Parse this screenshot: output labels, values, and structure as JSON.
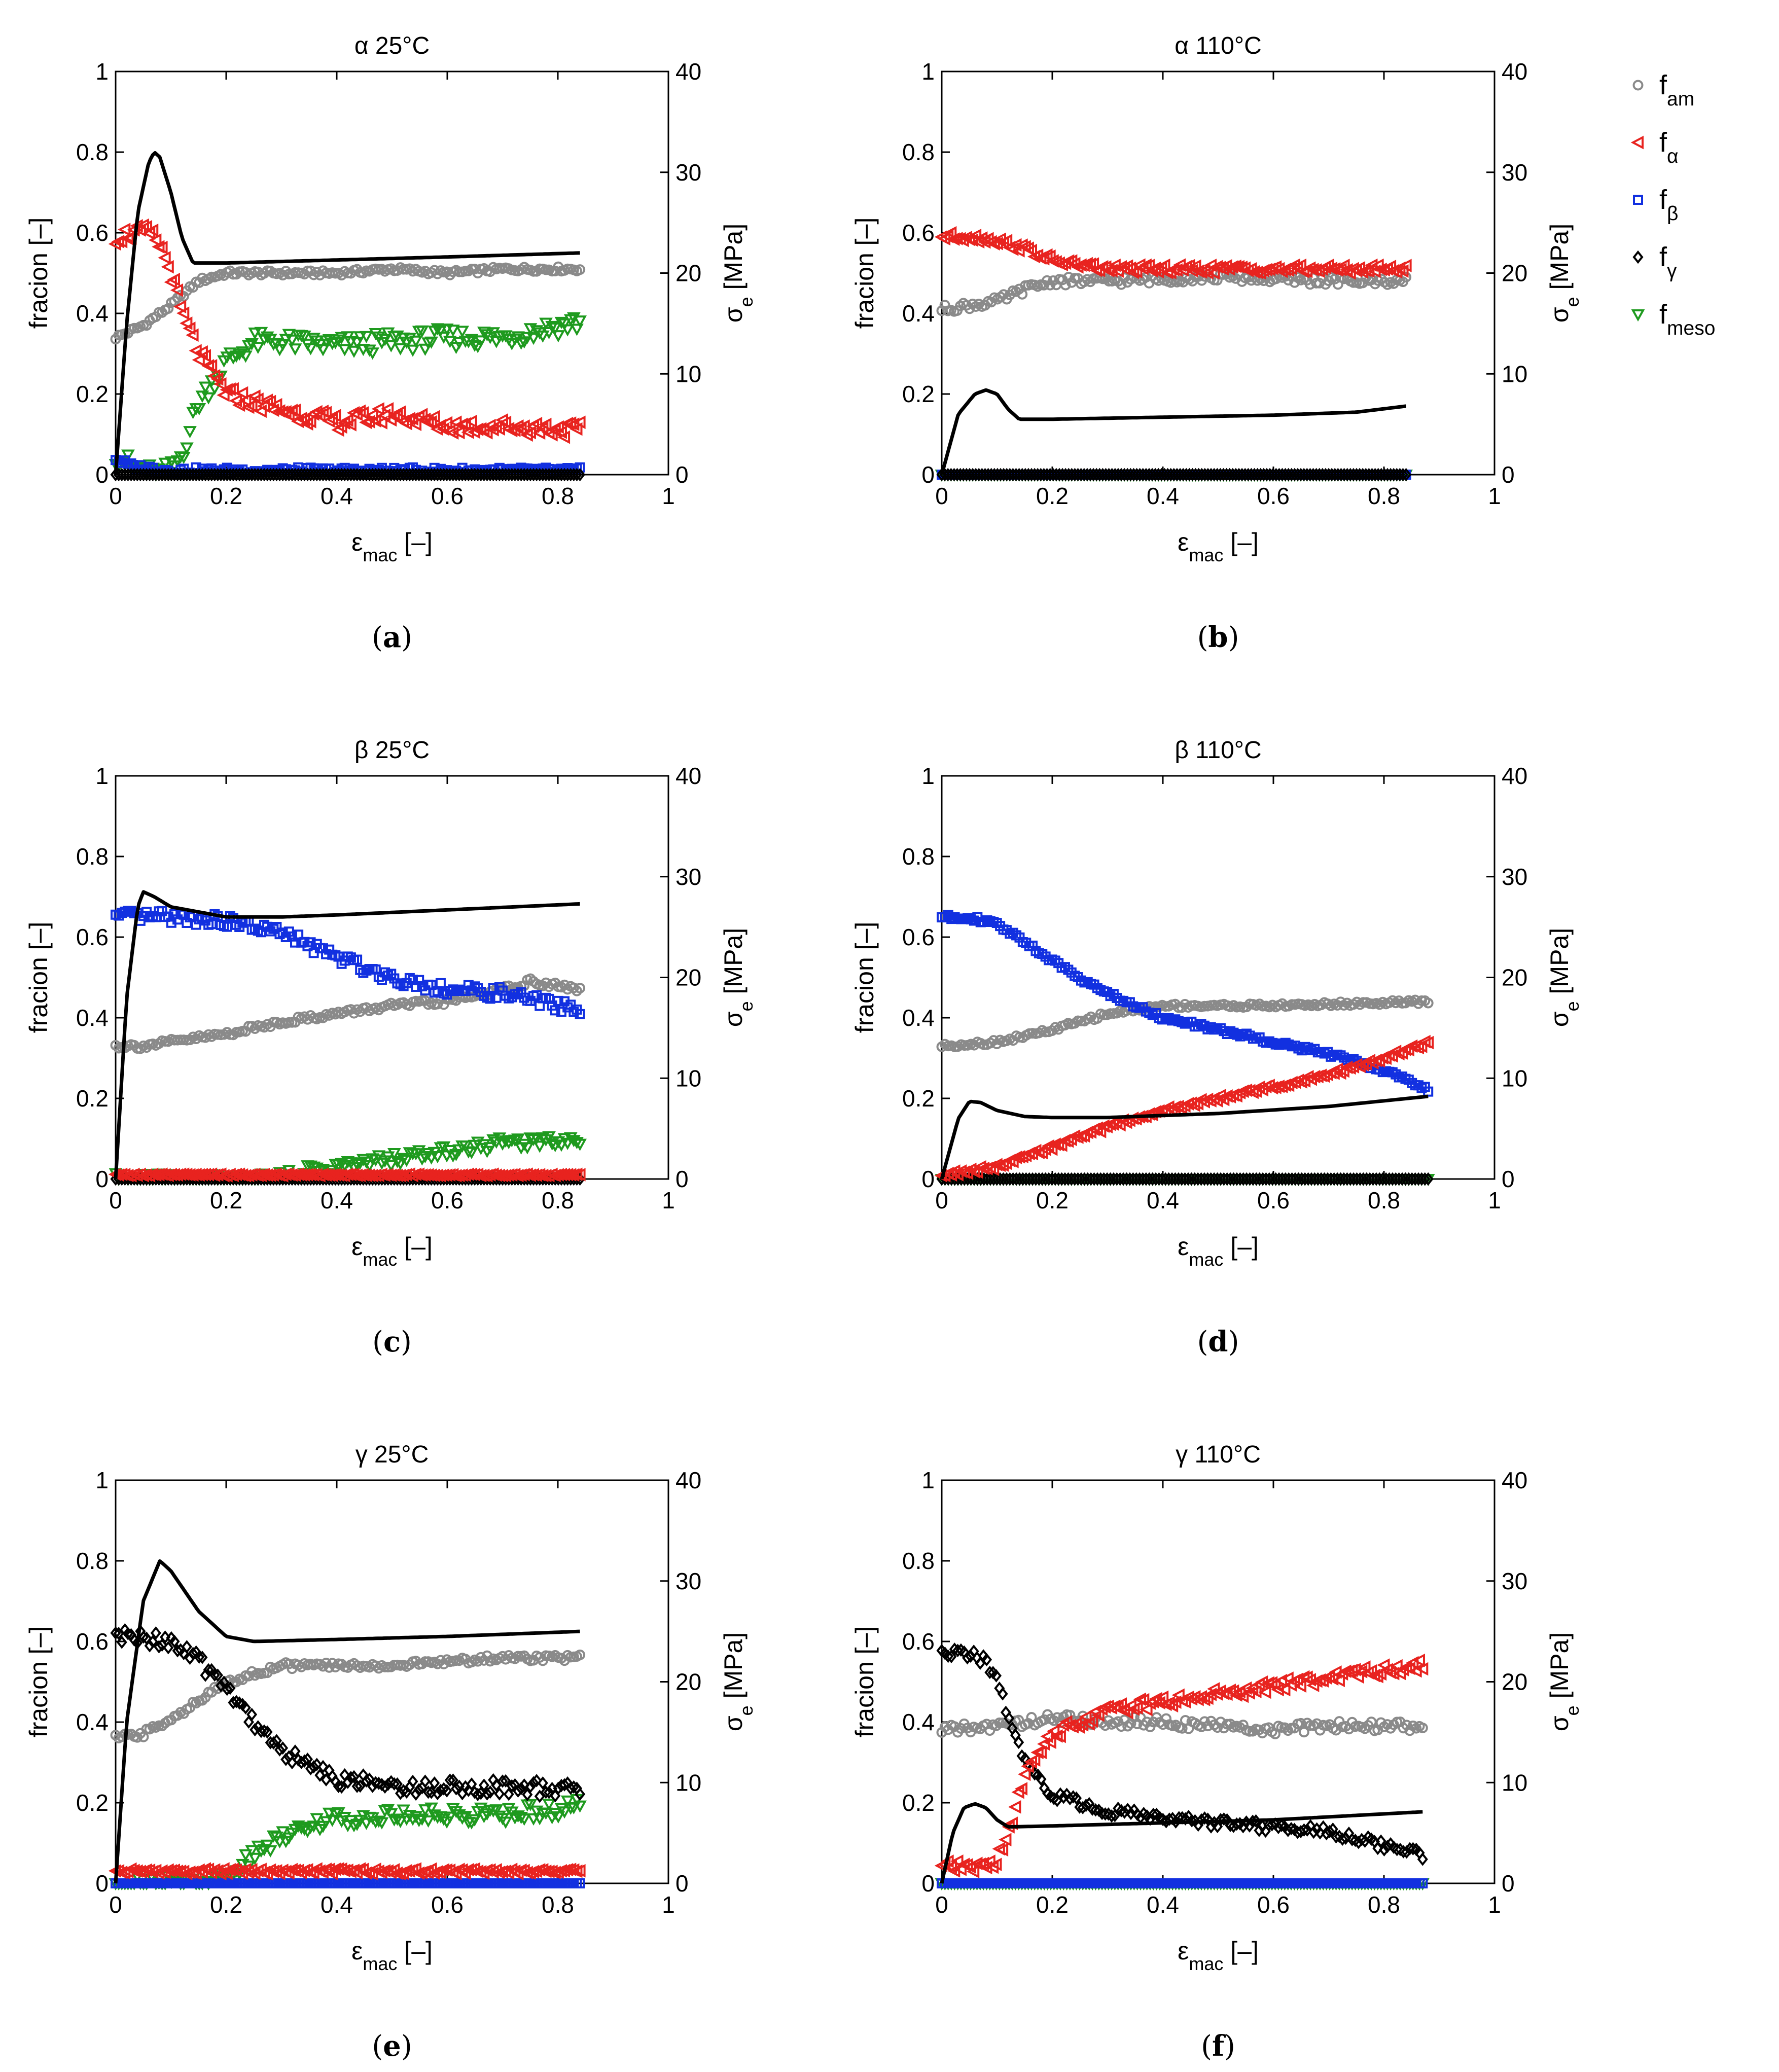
{
  "chart_data": {
    "type": "scatter",
    "legend": {
      "placement": "right",
      "entries": [
        {
          "key": "f_am",
          "base": "f",
          "sub": "am",
          "marker": "circle",
          "color": "#8a8a8a"
        },
        {
          "key": "f_alpha",
          "base": "f",
          "sub": "α",
          "marker": "triangle-left",
          "color": "#e8231f"
        },
        {
          "key": "f_beta",
          "base": "f",
          "sub": "β",
          "marker": "square",
          "color": "#1230e0"
        },
        {
          "key": "f_gamma",
          "base": "f",
          "sub": "γ",
          "marker": "diamond",
          "color": "#000000"
        },
        {
          "key": "f_meso",
          "base": "f",
          "sub": "meso",
          "marker": "triangle-down",
          "color": "#1e9a1e"
        }
      ]
    },
    "axes_common": {
      "xlim": [
        0,
        1
      ],
      "ylim_left": [
        0,
        1
      ],
      "ylim_right": [
        0,
        40
      ],
      "xticks": [
        0,
        0.2,
        0.4,
        0.6,
        0.8,
        1
      ],
      "yticks_left": [
        0,
        0.2,
        0.4,
        0.6,
        0.8,
        1
      ],
      "yticks_right": [
        0,
        10,
        20,
        30,
        40
      ],
      "xlabel": {
        "base": "ε",
        "sub": "mac",
        "suffix": " [–]"
      },
      "ylabel_left": "fracion [–]",
      "ylabel_right": {
        "base": "σ",
        "sub": "e",
        "suffix": " [MPa]"
      }
    },
    "panels": [
      {
        "id": "a",
        "title": "α 25°C",
        "caption_letter": "a",
        "x_end": 0.84,
        "stress": {
          "x": [
            0,
            0.02,
            0.04,
            0.06,
            0.07,
            0.08,
            0.1,
            0.12,
            0.14,
            0.2,
            0.4,
            0.6,
            0.84
          ],
          "y": [
            0,
            15,
            26,
            31,
            32,
            31.5,
            28,
            23.5,
            21,
            21,
            21.3,
            21.6,
            22
          ]
        },
        "series": {
          "f_am": {
            "x": [
              0,
              0.05,
              0.1,
              0.15,
              0.2,
              0.3,
              0.4,
              0.5,
              0.6,
              0.7,
              0.84
            ],
            "y": [
              0.34,
              0.37,
              0.42,
              0.48,
              0.5,
              0.5,
              0.5,
              0.51,
              0.5,
              0.51,
              0.51
            ],
            "noise": 0.006
          },
          "f_alpha": {
            "x": [
              0,
              0.03,
              0.06,
              0.08,
              0.1,
              0.12,
              0.15,
              0.2,
              0.3,
              0.4,
              0.5,
              0.6,
              0.7,
              0.84
            ],
            "y": [
              0.59,
              0.6,
              0.6,
              0.57,
              0.5,
              0.4,
              0.3,
              0.2,
              0.16,
              0.13,
              0.15,
              0.12,
              0.12,
              0.11
            ],
            "noise": 0.02
          },
          "f_beta": {
            "x": [
              0,
              0.03,
              0.1,
              0.2,
              0.4,
              0.6,
              0.84
            ],
            "y": [
              0.04,
              0.02,
              0.01,
              0.01,
              0.01,
              0.01,
              0.01
            ],
            "noise": 0.008
          },
          "f_gamma": {
            "x": [
              0,
              0.84
            ],
            "y": [
              0,
              0
            ],
            "noise": 0
          },
          "f_meso": {
            "x": [
              0,
              0.03,
              0.07,
              0.1,
              0.12,
              0.15,
              0.2,
              0.25,
              0.3,
              0.4,
              0.5,
              0.6,
              0.7,
              0.84
            ],
            "y": [
              0.05,
              0.02,
              0.0,
              0.01,
              0.05,
              0.18,
              0.28,
              0.33,
              0.33,
              0.32,
              0.33,
              0.34,
              0.34,
              0.38
            ],
            "noise": 0.025
          }
        }
      },
      {
        "id": "b",
        "title": "α 110°C",
        "caption_letter": "b",
        "x_end": 0.84,
        "stress": {
          "x": [
            0,
            0.03,
            0.06,
            0.08,
            0.1,
            0.12,
            0.14,
            0.2,
            0.4,
            0.6,
            0.75,
            0.84
          ],
          "y": [
            0,
            6,
            8,
            8.4,
            8,
            6.5,
            5.5,
            5.5,
            5.7,
            5.9,
            6.2,
            6.8
          ]
        },
        "series": {
          "f_am": {
            "x": [
              0,
              0.05,
              0.1,
              0.15,
              0.2,
              0.3,
              0.5,
              0.7,
              0.84
            ],
            "y": [
              0.41,
              0.42,
              0.43,
              0.46,
              0.48,
              0.48,
              0.49,
              0.48,
              0.48
            ],
            "noise": 0.01
          },
          "f_alpha": {
            "x": [
              0,
              0.05,
              0.1,
              0.15,
              0.2,
              0.3,
              0.5,
              0.7,
              0.84
            ],
            "y": [
              0.59,
              0.59,
              0.58,
              0.56,
              0.53,
              0.51,
              0.51,
              0.51,
              0.51
            ],
            "noise": 0.01
          },
          "f_beta": {
            "x": [
              0,
              0.84
            ],
            "y": [
              0,
              0
            ],
            "noise": 0
          },
          "f_gamma": {
            "x": [
              0,
              0.84
            ],
            "y": [
              0,
              0
            ],
            "noise": 0
          },
          "f_meso": {
            "x": [
              0,
              0.84
            ],
            "y": [
              0,
              0
            ],
            "noise": 0
          }
        }
      },
      {
        "id": "c",
        "title": "β 25°C",
        "caption_letter": "c",
        "x_end": 0.84,
        "stress": {
          "x": [
            0,
            0.02,
            0.04,
            0.05,
            0.07,
            0.1,
            0.15,
            0.2,
            0.3,
            0.4,
            0.6,
            0.84
          ],
          "y": [
            0,
            18,
            27,
            28.5,
            28,
            27,
            26.5,
            26,
            26,
            26.2,
            26.7,
            27.3
          ]
        },
        "series": {
          "f_am": {
            "x": [
              0,
              0.05,
              0.1,
              0.2,
              0.3,
              0.4,
              0.5,
              0.6,
              0.7,
              0.75,
              0.84
            ],
            "y": [
              0.33,
              0.33,
              0.34,
              0.36,
              0.39,
              0.41,
              0.43,
              0.44,
              0.47,
              0.49,
              0.47
            ],
            "noise": 0.007
          },
          "f_alpha": {
            "x": [
              0,
              0.84
            ],
            "y": [
              0.01,
              0.01
            ],
            "noise": 0.002
          },
          "f_beta": {
            "x": [
              0,
              0.1,
              0.2,
              0.3,
              0.4,
              0.5,
              0.6,
              0.7,
              0.84
            ],
            "y": [
              0.65,
              0.65,
              0.64,
              0.61,
              0.55,
              0.5,
              0.47,
              0.46,
              0.42
            ],
            "noise": 0.015
          },
          "f_gamma": {
            "x": [
              0,
              0.84
            ],
            "y": [
              0,
              0
            ],
            "noise": 0
          },
          "f_meso": {
            "x": [
              0,
              0.2,
              0.3,
              0.4,
              0.5,
              0.6,
              0.7,
              0.84
            ],
            "y": [
              0,
              0,
              0.01,
              0.03,
              0.05,
              0.07,
              0.09,
              0.1
            ],
            "noise": 0.015
          }
        }
      },
      {
        "id": "d",
        "title": "β 110°C",
        "caption_letter": "d",
        "x_end": 0.88,
        "stress": {
          "x": [
            0,
            0.03,
            0.05,
            0.07,
            0.1,
            0.15,
            0.2,
            0.3,
            0.5,
            0.7,
            0.88
          ],
          "y": [
            0,
            6,
            7.7,
            7.6,
            6.8,
            6.2,
            6.1,
            6.1,
            6.5,
            7.2,
            8.2
          ]
        },
        "series": {
          "f_am": {
            "x": [
              0,
              0.1,
              0.2,
              0.3,
              0.35,
              0.4,
              0.6,
              0.88
            ],
            "y": [
              0.33,
              0.34,
              0.37,
              0.41,
              0.42,
              0.43,
              0.43,
              0.44
            ],
            "noise": 0.005
          },
          "f_alpha": {
            "x": [
              0,
              0.1,
              0.2,
              0.3,
              0.4,
              0.5,
              0.6,
              0.7,
              0.8,
              0.88
            ],
            "y": [
              0.01,
              0.03,
              0.08,
              0.13,
              0.17,
              0.2,
              0.23,
              0.26,
              0.3,
              0.34
            ],
            "noise": 0.006
          },
          "f_beta": {
            "x": [
              0,
              0.05,
              0.1,
              0.15,
              0.2,
              0.3,
              0.4,
              0.5,
              0.6,
              0.7,
              0.8,
              0.88
            ],
            "y": [
              0.65,
              0.65,
              0.63,
              0.59,
              0.54,
              0.46,
              0.4,
              0.37,
              0.34,
              0.31,
              0.27,
              0.22
            ],
            "noise": 0.006
          },
          "f_gamma": {
            "x": [
              0,
              0.88
            ],
            "y": [
              0,
              0
            ],
            "noise": 0
          },
          "f_meso": {
            "x": [
              0,
              0.88
            ],
            "y": [
              0,
              0
            ],
            "noise": 0
          }
        }
      },
      {
        "id": "e",
        "title": "γ 25°C",
        "caption_letter": "e",
        "x_end": 0.84,
        "stress": {
          "x": [
            0,
            0.02,
            0.05,
            0.08,
            0.1,
            0.15,
            0.2,
            0.25,
            0.4,
            0.6,
            0.84
          ],
          "y": [
            0,
            16,
            28,
            32,
            31,
            27,
            24.5,
            24,
            24.2,
            24.5,
            25
          ]
        },
        "series": {
          "f_am": {
            "x": [
              0,
              0.05,
              0.1,
              0.15,
              0.2,
              0.3,
              0.4,
              0.5,
              0.6,
              0.7,
              0.84
            ],
            "y": [
              0.36,
              0.37,
              0.41,
              0.45,
              0.5,
              0.54,
              0.54,
              0.54,
              0.55,
              0.56,
              0.56
            ],
            "noise": 0.008
          },
          "f_alpha": {
            "x": [
              0,
              0.84
            ],
            "y": [
              0.03,
              0.03
            ],
            "noise": 0.006
          },
          "f_beta": {
            "x": [
              0,
              0.84
            ],
            "y": [
              0,
              0
            ],
            "noise": 0
          },
          "f_gamma": {
            "x": [
              0,
              0.05,
              0.1,
              0.15,
              0.2,
              0.25,
              0.3,
              0.35,
              0.4,
              0.5,
              0.6,
              0.7,
              0.84
            ],
            "y": [
              0.61,
              0.61,
              0.6,
              0.55,
              0.49,
              0.4,
              0.33,
              0.29,
              0.26,
              0.24,
              0.24,
              0.24,
              0.23
            ],
            "noise": 0.02
          },
          "f_meso": {
            "x": [
              0,
              0.15,
              0.2,
              0.25,
              0.3,
              0.35,
              0.4,
              0.5,
              0.6,
              0.7,
              0.84
            ],
            "y": [
              0.0,
              0.0,
              0.02,
              0.07,
              0.12,
              0.15,
              0.16,
              0.17,
              0.17,
              0.17,
              0.19
            ],
            "noise": 0.02
          }
        }
      },
      {
        "id": "f",
        "title": "γ 110°C",
        "caption_letter": "f",
        "x_end": 0.87,
        "stress": {
          "x": [
            0,
            0.02,
            0.04,
            0.06,
            0.08,
            0.1,
            0.12,
            0.2,
            0.4,
            0.6,
            0.87
          ],
          "y": [
            0,
            5,
            7.5,
            7.9,
            7.5,
            6.3,
            5.6,
            5.7,
            6,
            6.3,
            7.1
          ]
        },
        "series": {
          "f_am": {
            "x": [
              0,
              0.1,
              0.2,
              0.3,
              0.4,
              0.5,
              0.6,
              0.7,
              0.87
            ],
            "y": [
              0.38,
              0.39,
              0.41,
              0.4,
              0.4,
              0.39,
              0.38,
              0.39,
              0.39
            ],
            "noise": 0.012
          },
          "f_alpha": {
            "x": [
              0,
              0.08,
              0.1,
              0.12,
              0.15,
              0.2,
              0.3,
              0.4,
              0.5,
              0.6,
              0.7,
              0.87
            ],
            "y": [
              0.04,
              0.04,
              0.06,
              0.12,
              0.27,
              0.37,
              0.43,
              0.45,
              0.47,
              0.49,
              0.51,
              0.54
            ],
            "noise": 0.015
          },
          "f_beta": {
            "x": [
              0,
              0.87
            ],
            "y": [
              0,
              0
            ],
            "noise": 0
          },
          "f_gamma": {
            "x": [
              0,
              0.05,
              0.08,
              0.1,
              0.12,
              0.15,
              0.2,
              0.3,
              0.4,
              0.5,
              0.6,
              0.7,
              0.87
            ],
            "y": [
              0.57,
              0.57,
              0.55,
              0.5,
              0.42,
              0.3,
              0.22,
              0.18,
              0.16,
              0.15,
              0.14,
              0.13,
              0.07
            ],
            "noise": 0.012
          },
          "f_meso": {
            "x": [
              0,
              0.87
            ],
            "y": [
              0,
              0
            ],
            "noise": 0
          }
        }
      }
    ]
  }
}
